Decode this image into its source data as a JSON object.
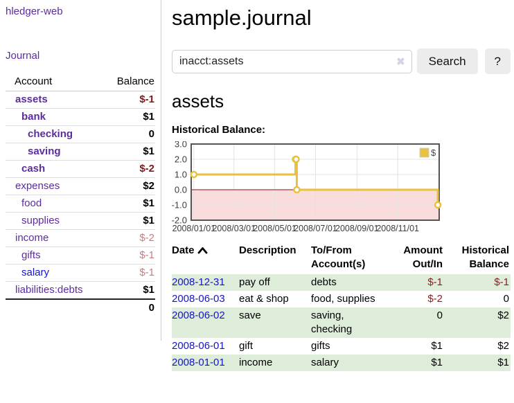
{
  "colors": {
    "accent_purple": "#5b2d9e",
    "link_blue": "#1414cc",
    "negative_strong": "#861616",
    "negative_muted": "#c47e7e",
    "row_highlight_green": "#deecda",
    "chart_line_gold": "#e8c23e"
  },
  "sidebar": {
    "brand": "hledger-web",
    "journal_link": "Journal",
    "header": {
      "account": "Account",
      "balance": "Balance"
    },
    "accounts": [
      {
        "name": "assets",
        "balance": "$-1"
      },
      {
        "name": "bank",
        "balance": "$1"
      },
      {
        "name": "checking",
        "balance": "0"
      },
      {
        "name": "saving",
        "balance": "$1"
      },
      {
        "name": "cash",
        "balance": "$-2"
      },
      {
        "name": "expenses",
        "balance": "$2"
      },
      {
        "name": "food",
        "balance": "$1"
      },
      {
        "name": "supplies",
        "balance": "$1"
      },
      {
        "name": "income",
        "balance": "$-2"
      },
      {
        "name": "gifts",
        "balance": "$-1"
      },
      {
        "name": "salary",
        "balance": "$-1"
      },
      {
        "name": "liabilities:debts",
        "balance": "$1"
      }
    ],
    "total_balance": "0"
  },
  "page": {
    "title": "sample.journal"
  },
  "search": {
    "value": "inacct:assets",
    "clear_icon": "✖",
    "search_button": "Search",
    "help_button": "?"
  },
  "account_view": {
    "heading": "assets",
    "chart_title": "Historical Balance:"
  },
  "chart_data": {
    "type": "line",
    "step": true,
    "title": "Historical Balance",
    "series": [
      {
        "name": "$",
        "color": "#e8c23e",
        "points": [
          [
            "2008-01-01",
            1
          ],
          [
            "2008-06-01",
            2
          ],
          [
            "2008-06-02",
            2
          ],
          [
            "2008-06-03",
            0
          ],
          [
            "2008-12-31",
            -1
          ]
        ]
      }
    ],
    "ylim": [
      -2,
      3
    ],
    "yticks": [
      "3.0",
      "2.0",
      "1.0",
      "0.0",
      "-1.0",
      "-2.0"
    ],
    "xticks": [
      "2008/01/01",
      "2008/03/01",
      "2008/05/01",
      "2008/07/01",
      "2008/09/01",
      "2008/11/01"
    ],
    "grid": true,
    "legend": {
      "label": "$",
      "position": "top-right"
    },
    "negative_fill": "#f9dcdc",
    "zero_line_color": "#8d1010"
  },
  "register": {
    "columns": {
      "date": "Date",
      "description": "Description",
      "account": "To/From Account(s)",
      "amount": "Amount Out/In",
      "balance": "Historical Balance"
    },
    "rows": [
      {
        "date": "2008-12-31",
        "description": "pay off",
        "accounts": "debts",
        "amount": "$-1",
        "balance": "$-1"
      },
      {
        "date": "2008-06-03",
        "description": "eat & shop",
        "accounts": "food, supplies",
        "amount": "$-2",
        "balance": "0"
      },
      {
        "date": "2008-06-02",
        "description": "save",
        "accounts": "saving, checking",
        "amount": "0",
        "balance": "$2"
      },
      {
        "date": "2008-06-01",
        "description": "gift",
        "accounts": "gifts",
        "amount": "$1",
        "balance": "$2"
      },
      {
        "date": "2008-01-01",
        "description": "income",
        "accounts": "salary",
        "amount": "$1",
        "balance": "$1"
      }
    ]
  }
}
